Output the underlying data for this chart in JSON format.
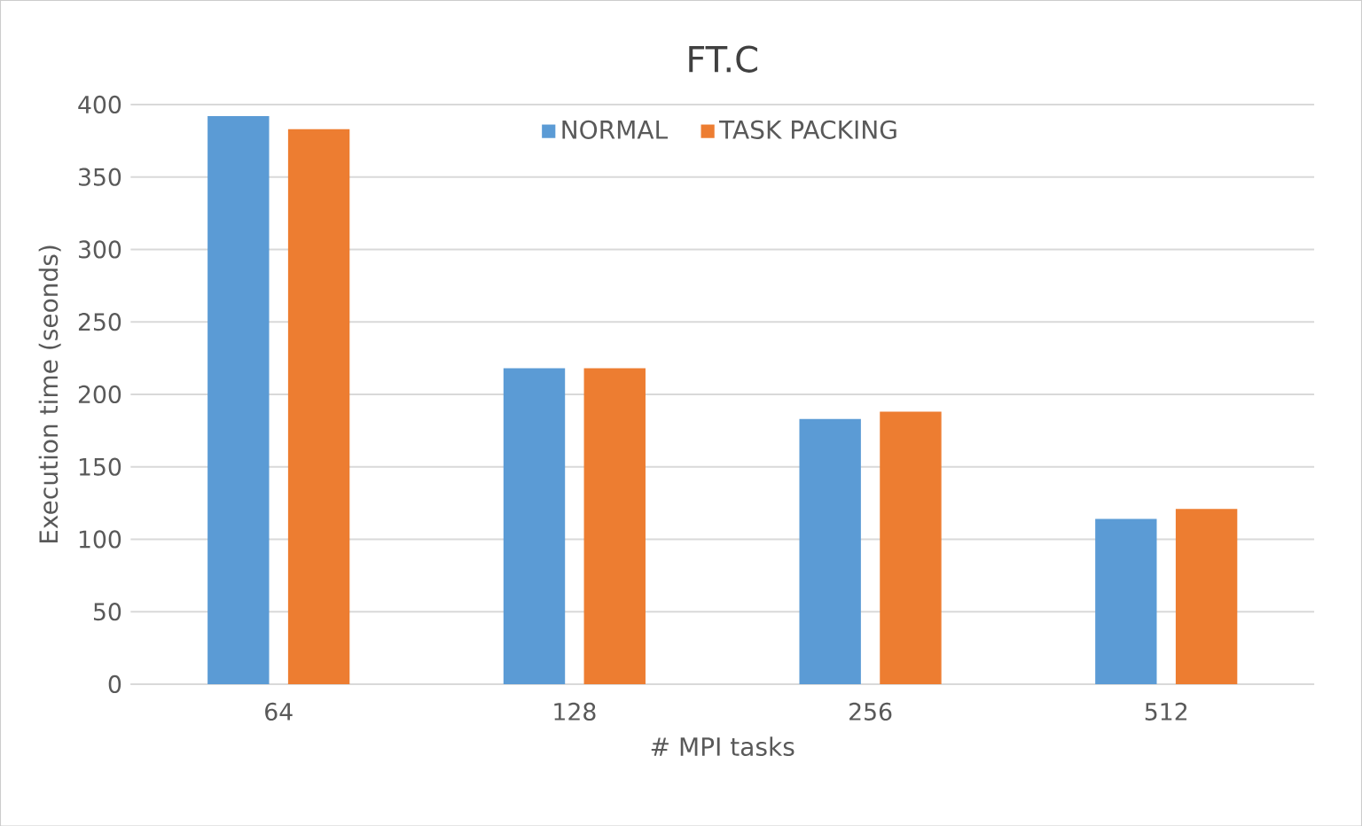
{
  "chart_data": {
    "type": "bar",
    "title": "FT.C",
    "xlabel": "# MPI tasks",
    "ylabel": "Execution time (seonds)",
    "categories": [
      "64",
      "128",
      "256",
      "512"
    ],
    "series": [
      {
        "name": "NORMAL",
        "color": "#5b9bd5",
        "values": [
          392,
          218,
          183,
          114
        ]
      },
      {
        "name": "TASK PACKING",
        "color": "#ed7d31",
        "values": [
          383,
          218,
          188,
          121
        ]
      }
    ],
    "ylim": [
      0,
      400
    ],
    "yticks": [
      0,
      50,
      100,
      150,
      200,
      250,
      300,
      350,
      400
    ],
    "grid": "y",
    "legend": "top"
  }
}
